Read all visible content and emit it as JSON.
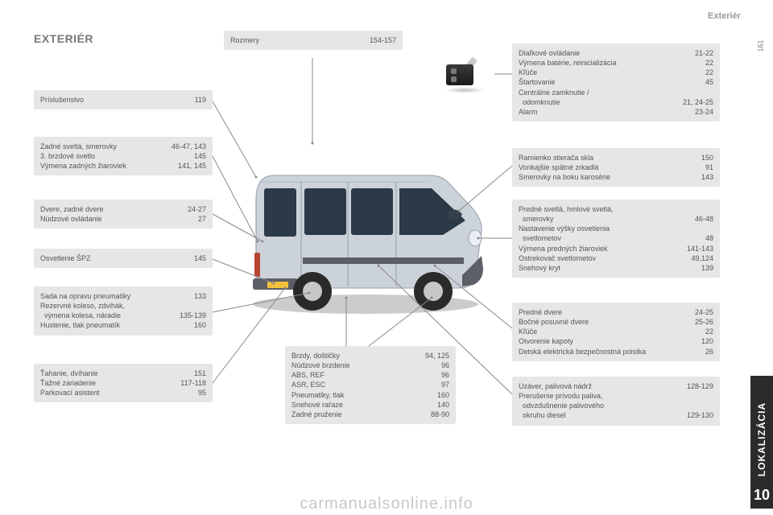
{
  "header": {
    "section": "Exteriér"
  },
  "title": "EXTERIÉR",
  "page_number": "161",
  "sidetab": {
    "number": "10",
    "label": "LOKALIZÁCIA"
  },
  "watermark": "carmanualsonline.info",
  "box_rozmery": {
    "rows": [
      {
        "l": "Rozmery",
        "r": "154-157"
      }
    ]
  },
  "box_prislus": {
    "rows": [
      {
        "l": "Príslušenstvo",
        "r": "119"
      }
    ]
  },
  "box_zadne": {
    "rows": [
      {
        "l": "Zadné svetlá, smerovky",
        "r": "46-47, 143"
      },
      {
        "l": "3. brzdové svetlo",
        "r": "145"
      },
      {
        "l": "Výmena zadných žiaroviek",
        "r": "141, 145"
      }
    ]
  },
  "box_dvere": {
    "rows": [
      {
        "l": "Dvere, zadné dvere",
        "r": "24-27"
      },
      {
        "l": "Núdzové ovládanie",
        "r": "27"
      }
    ]
  },
  "box_spz": {
    "rows": [
      {
        "l": "Osvetlenie ŠPZ",
        "r": "145"
      }
    ]
  },
  "box_sada": {
    "rows": [
      {
        "l": "Sada na opravu pneumatiky",
        "r": "133"
      },
      {
        "l": "Rezervné koleso, zdvihák,",
        "r": ""
      },
      {
        "l": "  výmena kolesa, náradie",
        "r": "135-139"
      },
      {
        "l": "Hustenie, tlak pneumatík",
        "r": "160"
      }
    ]
  },
  "box_tahanie": {
    "rows": [
      {
        "l": "Ťahanie, dvíhanie",
        "r": "151"
      },
      {
        "l": "Ťažné zariadenie",
        "r": "117-118"
      },
      {
        "l": "Parkovací asistent",
        "r": "95"
      }
    ]
  },
  "box_brzdy": {
    "rows": [
      {
        "l": "Brzdy, doštičky",
        "r": "94, 125"
      },
      {
        "l": "Núdzové brzdenie",
        "r": "96"
      },
      {
        "l": "ABS, REF",
        "r": "96"
      },
      {
        "l": "ASR, ESC",
        "r": "97"
      },
      {
        "l": "Pneumatiky, tlak",
        "r": "160"
      },
      {
        "l": "Snehové raťaze",
        "r": "140"
      },
      {
        "l": "Zadné pruženie",
        "r": "88-90"
      }
    ]
  },
  "box_dialk": {
    "rows": [
      {
        "l": "Diaľkové ovládanie",
        "r": "21-22"
      },
      {
        "l": "Výmena batérie, reinicializácia",
        "r": "22"
      },
      {
        "l": "Kľúče",
        "r": "22"
      },
      {
        "l": "Štartovanie",
        "r": "45"
      },
      {
        "l": "Centrálne zamknutie /",
        "r": ""
      },
      {
        "l": "  odomknutie",
        "r": "21, 24-25"
      },
      {
        "l": "Alarm",
        "r": "23-24"
      }
    ]
  },
  "box_ramien": {
    "rows": [
      {
        "l": "Ramienko stierača skla",
        "r": "150"
      },
      {
        "l": "Vonkajšie spätné zrkadlá",
        "r": "91"
      },
      {
        "l": "Smerovky na boku karosérie",
        "r": "143"
      }
    ]
  },
  "box_predsv": {
    "rows": [
      {
        "l": "Predné svetlá, hmlové svetlá,",
        "r": ""
      },
      {
        "l": "  smerovky",
        "r": "46-48"
      },
      {
        "l": "Nastavenie výšky osvetlenia",
        "r": ""
      },
      {
        "l": "  svetlometov",
        "r": "48"
      },
      {
        "l": "Výmena predných žiaroviek",
        "r": "141-143"
      },
      {
        "l": "Ostrekovač svetlometov",
        "r": "49,124"
      },
      {
        "l": "Snehový kryt",
        "r": "139"
      }
    ]
  },
  "box_preddv": {
    "rows": [
      {
        "l": "Predné dvere",
        "r": "24-25"
      },
      {
        "l": "Bočné posuvné dvere",
        "r": "25-26"
      },
      {
        "l": "Kľúče",
        "r": "22"
      },
      {
        "l": "Otvorenie kapoty",
        "r": "120"
      },
      {
        "l": "Detská elektrická bezpečnostná poistka",
        "r": "26"
      }
    ]
  },
  "box_uzaver": {
    "rows": [
      {
        "l": "Uzáver, palivová nádrž",
        "r": "128-129"
      },
      {
        "l": "Prerušenie prívodu paliva,",
        "r": ""
      },
      {
        "l": "  odvzdušnenie palivového",
        "r": ""
      },
      {
        "l": "  okruhu diesel",
        "r": "129-130"
      }
    ]
  },
  "van": {
    "body_color": "#c9ced6",
    "window_color": "#2c3946",
    "wheel_color": "#2a2a2a",
    "rim_color": "#c7c7c7",
    "ground_shadow": "rgba(0,0,0,0.25)",
    "bumper_color": "#5c5f66",
    "light_color": "#c43b2a",
    "plate_color": "#f2c23a"
  },
  "lines": {
    "color": "#8a8a8a"
  }
}
